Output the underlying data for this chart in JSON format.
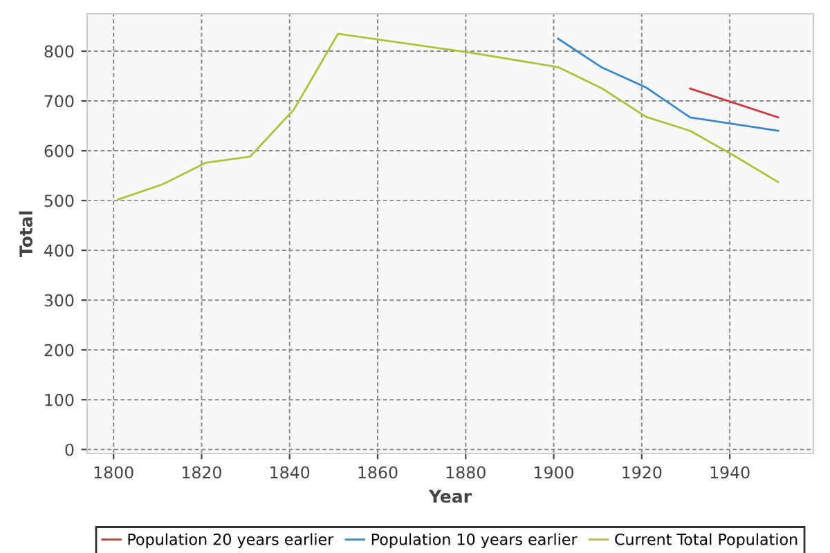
{
  "chart_data": {
    "type": "line",
    "xlabel": "Year",
    "ylabel": "Total",
    "series": [
      {
        "name": "Population 20 years earlier",
        "color": "#d0343f",
        "x": [
          1931,
          1951
        ],
        "values": [
          725,
          667
        ]
      },
      {
        "name": "Population 10 years earlier",
        "color": "#3a87c8",
        "x": [
          1901,
          1911,
          1921,
          1931,
          1951
        ],
        "values": [
          825,
          767,
          727,
          667,
          640
        ]
      },
      {
        "name": "Current Total Population",
        "color": "#a9c43c",
        "x": [
          1801,
          1811,
          1821,
          1831,
          1841,
          1851,
          1881,
          1901,
          1911,
          1921,
          1931,
          1941,
          1951
        ],
        "values": [
          502,
          532,
          576,
          588,
          683,
          835,
          797,
          768,
          725,
          668,
          640,
          590,
          537
        ]
      }
    ],
    "xlim": [
      1794,
      1959
    ],
    "xticks": [
      1800,
      1820,
      1840,
      1860,
      1880,
      1900,
      1920,
      1940
    ],
    "ylim": [
      -8,
      875
    ],
    "yticks": [
      0,
      100,
      200,
      300,
      400,
      500,
      600,
      700,
      800
    ],
    "grid": true,
    "legend": "bottom"
  }
}
